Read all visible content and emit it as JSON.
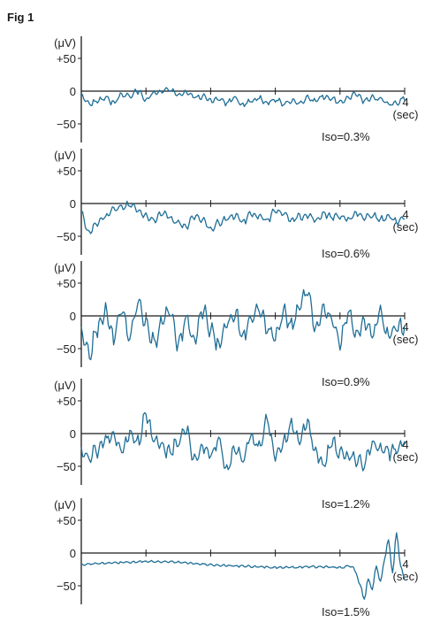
{
  "figure_label": "Fig 1",
  "colors": {
    "trace": "#1f6e96",
    "axis": "#1a1a1a"
  },
  "chart_data": [
    {
      "type": "line",
      "iso_label": "Iso=0.3%",
      "y_unit": "(μV)",
      "x_end_label": "4",
      "x_unit": "(sec)",
      "y_ticks": [
        "+50",
        "0",
        "−50"
      ],
      "x_range": [
        0,
        4
      ],
      "y_range": [
        -75,
        75
      ],
      "x_tick_count": 5,
      "noise_scale": 0.4,
      "series": [
        {
          "x": [
            0,
            0.1,
            0.2,
            0.3,
            0.4,
            0.5,
            0.6,
            0.7,
            0.8,
            0.9,
            1.0,
            1.1,
            1.2,
            1.3,
            1.4,
            1.5,
            1.6,
            1.7,
            1.8,
            1.9,
            2.0,
            2.1,
            2.2,
            2.3,
            2.4,
            2.5,
            2.6,
            2.7,
            2.8,
            2.9,
            3.0,
            3.1,
            3.2,
            3.3,
            3.4,
            3.5,
            3.6,
            3.7,
            3.8,
            3.9,
            4.0
          ],
          "y": [
            -5,
            -20,
            -15,
            -10,
            -18,
            -5,
            -8,
            0,
            -12,
            -3,
            0,
            2,
            -5,
            -2,
            -10,
            -8,
            -15,
            -12,
            -18,
            -10,
            -20,
            -15,
            -10,
            -18,
            -12,
            -20,
            -15,
            -18,
            -10,
            -15,
            -8,
            -12,
            -18,
            -10,
            -5,
            -15,
            -10,
            -12,
            -20,
            -18,
            -10
          ]
        }
      ]
    },
    {
      "type": "line",
      "iso_label": "Iso=0.6%",
      "y_unit": "(μV)",
      "x_end_label": "4",
      "x_unit": "(sec)",
      "y_ticks": [
        "+50",
        "0",
        "−50"
      ],
      "x_range": [
        0,
        4
      ],
      "y_range": [
        -75,
        75
      ],
      "x_tick_count": 5,
      "noise_scale": 0.5,
      "series": [
        {
          "x": [
            0,
            0.1,
            0.2,
            0.3,
            0.4,
            0.5,
            0.6,
            0.7,
            0.8,
            0.9,
            1.0,
            1.1,
            1.2,
            1.3,
            1.4,
            1.5,
            1.6,
            1.7,
            1.8,
            1.9,
            2.0,
            2.1,
            2.2,
            2.3,
            2.4,
            2.5,
            2.6,
            2.7,
            2.8,
            2.9,
            3.0,
            3.1,
            3.2,
            3.3,
            3.4,
            3.5,
            3.6,
            3.7,
            3.8,
            3.9,
            4.0
          ],
          "y": [
            -15,
            -45,
            -30,
            -20,
            -10,
            -5,
            -2,
            -10,
            -20,
            -25,
            -15,
            -22,
            -30,
            -35,
            -20,
            -25,
            -40,
            -30,
            -22,
            -18,
            -28,
            -15,
            -20,
            -25,
            -10,
            -15,
            -25,
            -20,
            -18,
            -25,
            -15,
            -22,
            -20,
            -25,
            -15,
            -22,
            -18,
            -25,
            -20,
            -28,
            -20
          ]
        }
      ]
    },
    {
      "type": "line",
      "iso_label": "Iso=0.9%",
      "y_unit": "(μV)",
      "x_end_label": "4",
      "x_unit": "(sec)",
      "y_ticks": [
        "+50",
        "0",
        "−50"
      ],
      "x_range": [
        0,
        4
      ],
      "y_range": [
        -75,
        75
      ],
      "x_tick_count": 5,
      "noise_scale": 1.2,
      "series": [
        {
          "x": [
            0,
            0.1,
            0.2,
            0.3,
            0.4,
            0.5,
            0.6,
            0.7,
            0.8,
            0.9,
            1.0,
            1.1,
            1.2,
            1.3,
            1.4,
            1.5,
            1.6,
            1.7,
            1.8,
            1.9,
            2.0,
            2.1,
            2.2,
            2.3,
            2.4,
            2.5,
            2.6,
            2.7,
            2.8,
            2.9,
            3.0,
            3.1,
            3.2,
            3.3,
            3.4,
            3.5,
            3.6,
            3.7,
            3.8,
            3.9,
            4.0
          ],
          "y": [
            -30,
            -55,
            -20,
            5,
            -35,
            10,
            -30,
            20,
            -15,
            -40,
            -10,
            10,
            -45,
            -5,
            -35,
            10,
            -20,
            -45,
            -10,
            5,
            -30,
            -5,
            10,
            -20,
            -35,
            5,
            -15,
            15,
            35,
            -20,
            10,
            -10,
            -40,
            5,
            -25,
            -10,
            -30,
            5,
            -30,
            -15,
            -20
          ]
        }
      ]
    },
    {
      "type": "line",
      "iso_label": "Iso=1.2%",
      "y_unit": "(μV)",
      "x_end_label": "4",
      "x_unit": "(sec)",
      "y_ticks": [
        "+50",
        "0",
        "−50"
      ],
      "x_range": [
        0,
        4
      ],
      "y_range": [
        -75,
        75
      ],
      "x_tick_count": 5,
      "noise_scale": 1.0,
      "series": [
        {
          "x": [
            0,
            0.1,
            0.2,
            0.3,
            0.4,
            0.5,
            0.6,
            0.7,
            0.8,
            0.9,
            1.0,
            1.1,
            1.2,
            1.3,
            1.4,
            1.5,
            1.6,
            1.7,
            1.8,
            1.9,
            2.0,
            2.1,
            2.2,
            2.3,
            2.4,
            2.5,
            2.6,
            2.7,
            2.8,
            2.9,
            3.0,
            3.1,
            3.2,
            3.3,
            3.4,
            3.5,
            3.6,
            3.7,
            3.8,
            3.9,
            4.0
          ],
          "y": [
            -30,
            -35,
            -25,
            -10,
            -5,
            -25,
            0,
            -15,
            30,
            -10,
            -20,
            -30,
            -10,
            5,
            -40,
            -20,
            -35,
            -10,
            -55,
            -20,
            -40,
            -5,
            -20,
            20,
            -35,
            -15,
            15,
            -10,
            20,
            -30,
            -50,
            -10,
            -30,
            -35,
            -40,
            -45,
            -15,
            -25,
            -30,
            -25,
            -10
          ]
        }
      ]
    },
    {
      "type": "line",
      "iso_label": "Iso=1.5%",
      "y_unit": "(μV)",
      "x_end_label": "4",
      "x_unit": "(sec)",
      "y_ticks": [
        "+50",
        "0",
        "−50"
      ],
      "x_range": [
        0,
        4
      ],
      "y_range": [
        -75,
        75
      ],
      "x_tick_count": 5,
      "noise_scale": 0.15,
      "series": [
        {
          "x": [
            0,
            0.2,
            0.4,
            0.6,
            0.8,
            1.0,
            1.2,
            1.4,
            1.6,
            1.8,
            2.0,
            2.2,
            2.4,
            2.6,
            2.8,
            3.0,
            3.2,
            3.35,
            3.4,
            3.45,
            3.5,
            3.55,
            3.6,
            3.65,
            3.7,
            3.75,
            3.8,
            3.85,
            3.9,
            3.95,
            4.0
          ],
          "y": [
            -18,
            -16,
            -15,
            -14,
            -13,
            -13,
            -14,
            -16,
            -18,
            -19,
            -20,
            -21,
            -22,
            -22,
            -21,
            -21,
            -22,
            -20,
            -30,
            -50,
            -70,
            -40,
            -55,
            -20,
            -45,
            -10,
            20,
            -30,
            30,
            -20,
            -40
          ]
        }
      ]
    }
  ]
}
